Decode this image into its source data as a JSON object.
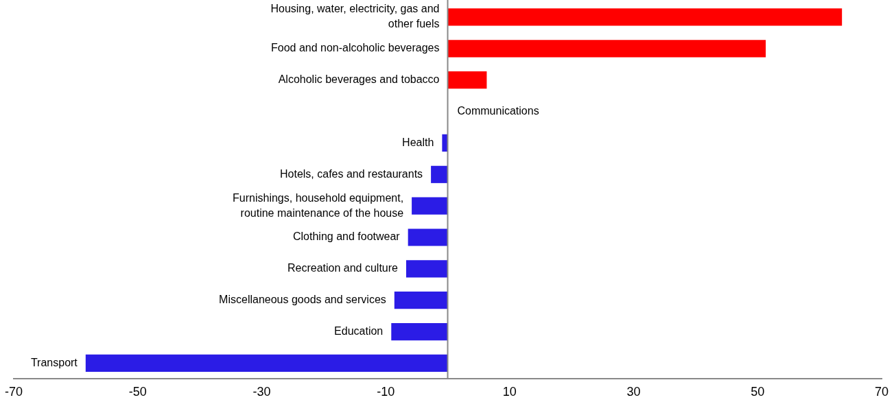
{
  "chart_data": {
    "type": "bar",
    "orientation": "horizontal",
    "categories": [
      "Housing, water, electricity, gas and other fuels",
      "Food and non-alcoholic beverages",
      "Alcoholic beverages and tobacco",
      "Communications",
      "Health",
      "Hotels, cafes and restaurants",
      "Furnishings, household equipment, routine maintenance of the house",
      "Clothing and footwear",
      "Recreation and culture",
      "Miscellaneous goods and services",
      "Education",
      "Transport"
    ],
    "values": [
      63.6,
      51.3,
      6.3,
      0,
      -0.9,
      -2.7,
      -5.8,
      -6.4,
      -6.7,
      -8.6,
      -9.1,
      -58.4
    ],
    "colors": [
      "#ff0000",
      "#ff0000",
      "#ff0000",
      "#ff0000",
      "#2b1ce6",
      "#2b1ce6",
      "#2b1ce6",
      "#2b1ce6",
      "#2b1ce6",
      "#2b1ce6",
      "#2b1ce6",
      "#2b1ce6"
    ],
    "xlim": [
      -70,
      70
    ],
    "xticks": [
      -70,
      -50,
      -30,
      -10,
      10,
      30,
      50,
      70
    ],
    "grid": false,
    "legend": false
  }
}
